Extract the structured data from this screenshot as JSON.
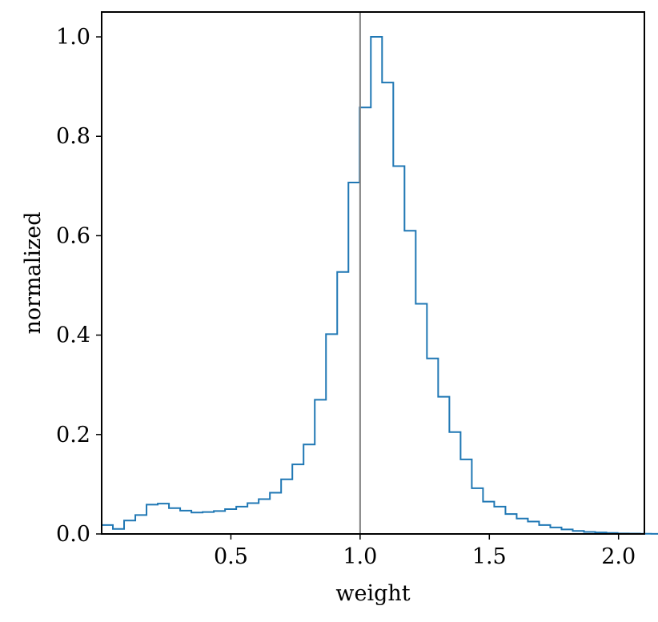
{
  "chart_data": {
    "type": "step",
    "xlabel": "weight",
    "ylabel": "normalized",
    "xlim": [
      0,
      2.1
    ],
    "ylim": [
      0,
      1.05
    ],
    "grid": false,
    "x_ticks": [
      "0.5",
      "1.0",
      "1.5",
      "2.0"
    ],
    "y_ticks": [
      "0.0",
      "0.2",
      "0.4",
      "0.6",
      "0.8",
      "1.0"
    ],
    "vertical_line": 1.0,
    "series": [
      {
        "bin_width": 0.0434,
        "bin_start": 0.0,
        "values": [
          0.018,
          0.01,
          0.027,
          0.038,
          0.059,
          0.061,
          0.052,
          0.047,
          0.043,
          0.044,
          0.046,
          0.05,
          0.055,
          0.062,
          0.07,
          0.083,
          0.11,
          0.14,
          0.18,
          0.27,
          0.402,
          0.527,
          0.707,
          0.858,
          1.0,
          0.908,
          0.74,
          0.61,
          0.463,
          0.353,
          0.276,
          0.205,
          0.15,
          0.092,
          0.065,
          0.055,
          0.04,
          0.031,
          0.025,
          0.018,
          0.013,
          0.009,
          0.006,
          0.004,
          0.003,
          0.002,
          0.001,
          0.0008,
          0.0005,
          0.0003
        ]
      }
    ],
    "colors": {
      "series": "#1f77b4",
      "vertical_line": "#808080",
      "axes": "#000000"
    }
  }
}
